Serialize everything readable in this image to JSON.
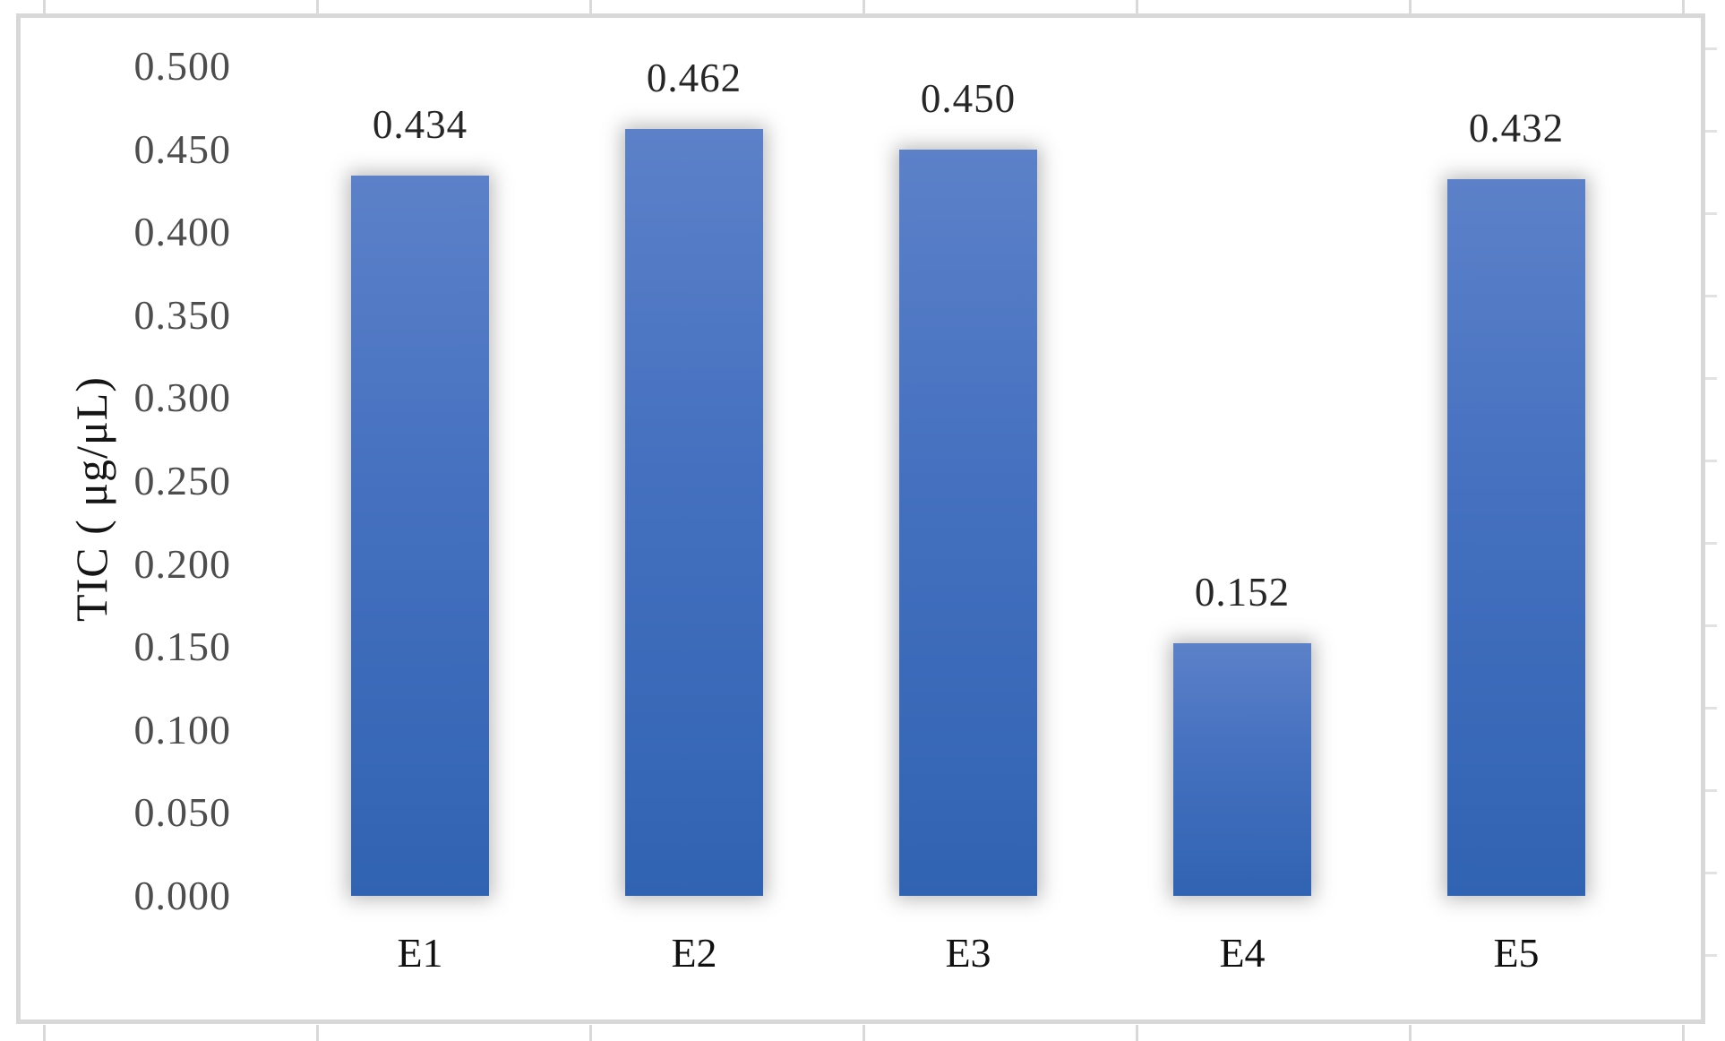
{
  "chart_data": {
    "type": "bar",
    "title": "",
    "categories": [
      "E1",
      "E2",
      "E3",
      "E4",
      "E5"
    ],
    "values": [
      0.434,
      0.462,
      0.45,
      0.152,
      0.432
    ],
    "value_labels": [
      "0.434",
      "0.462",
      "0.450",
      "0.152",
      "0.432"
    ],
    "xlabel": "",
    "ylabel": "TIC ( μg/μL)",
    "ylim": [
      0,
      0.5
    ],
    "ytick_step": 0.05,
    "ytick_labels": [
      "0.000",
      "0.050",
      "0.100",
      "0.150",
      "0.200",
      "0.250",
      "0.300",
      "0.350",
      "0.400",
      "0.450",
      "0.500"
    ],
    "grid": false,
    "legend": "none",
    "series_name": "",
    "colors": {
      "bar_top": "#5c81c9",
      "bar_bottom": "#3163b3",
      "chart_border": "#d8d8d8",
      "tick_label": "#4d4d4d",
      "category_label": "#101010",
      "value_label": "#262626",
      "axis_title": "#151515"
    }
  }
}
